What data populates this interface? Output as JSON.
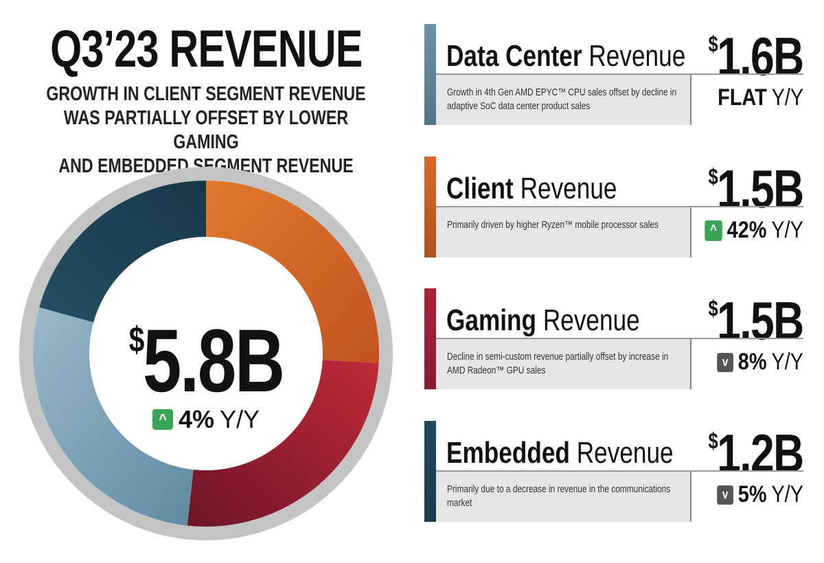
{
  "header": {
    "title": "Q3’23 REVENUE",
    "subtitle_lines": [
      "GROWTH IN CLIENT SEGMENT REVENUE",
      "WAS PARTIALLY OFFSET BY LOWER GAMING",
      "AND EMBEDDED SEGMENT REVENUE"
    ]
  },
  "total": {
    "currency": "$",
    "value": "5.8B",
    "change": "4%",
    "change_suffix": "Y/Y",
    "direction": "up"
  },
  "segments": [
    {
      "name": "Data Center",
      "suffix": "Revenue",
      "currency": "$",
      "value": "1.6B",
      "desc": "Growth in 4th Gen AMD EPYC™ CPU sales offset by decline in adaptive SoC data center product sales",
      "change": "FLAT",
      "change_suffix": "Y/Y",
      "direction": "flat",
      "color": "#6a92a8"
    },
    {
      "name": "Client",
      "suffix": "Revenue",
      "currency": "$",
      "value": "1.5B",
      "desc": "Primarily driven by higher Ryzen™ mobile processor sales",
      "change": "42%",
      "change_suffix": "Y/Y",
      "direction": "up",
      "color": "#d8692a"
    },
    {
      "name": "Gaming",
      "suffix": "Revenue",
      "currency": "$",
      "value": "1.5B",
      "desc": "Decline in semi-custom revenue partially offset by increase in AMD Radeon™ GPU sales",
      "change": "8%",
      "change_suffix": "Y/Y",
      "direction": "down",
      "color": "#a8233a"
    },
    {
      "name": "Embedded",
      "suffix": "Revenue",
      "currency": "$",
      "value": "1.2B",
      "desc": "Primarily due to a decrease in revenue in the communications market",
      "change": "5%",
      "change_suffix": "Y/Y",
      "direction": "down",
      "color": "#1f4a5e"
    }
  ],
  "chart_data": {
    "type": "pie",
    "subtype": "donut",
    "categories": [
      "Client",
      "Gaming",
      "Data Center",
      "Embedded"
    ],
    "values": [
      1.5,
      1.5,
      1.6,
      1.2
    ],
    "unit": "$B",
    "total": 5.8,
    "colors": [
      "#d8692a",
      "#a8233a",
      "#7ea3b8",
      "#1f4a5e"
    ],
    "start": "top",
    "direction": "clockwise"
  }
}
